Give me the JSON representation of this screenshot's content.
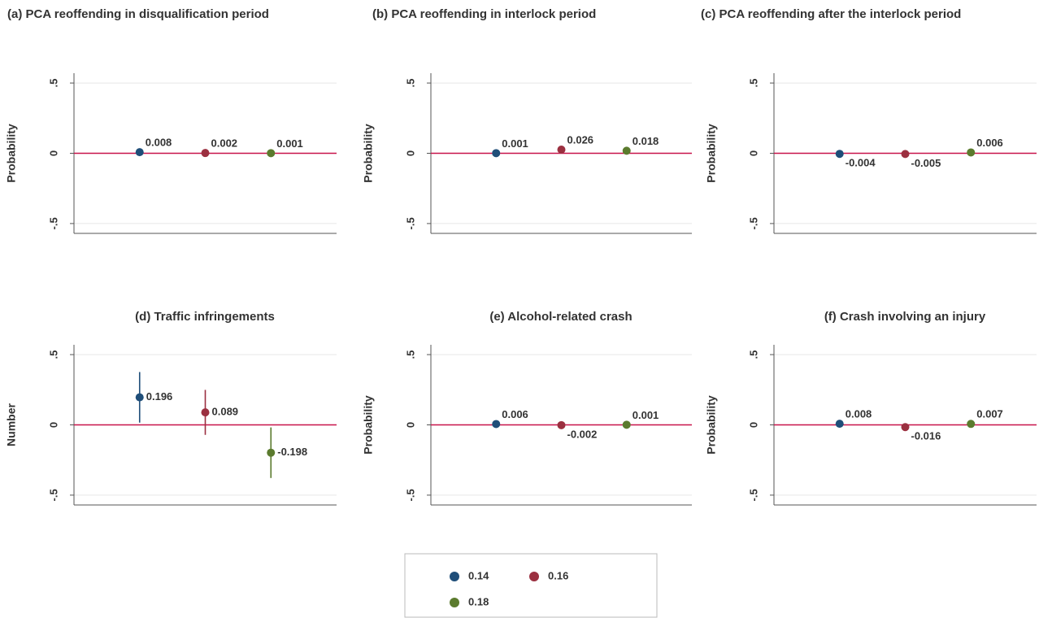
{
  "legend": [
    {
      "name": "0.14",
      "color": "#1f4e79"
    },
    {
      "name": "0.16",
      "color": "#9b3040"
    },
    {
      "name": "0.18",
      "color": "#5b7b2e"
    }
  ],
  "chart_data": [
    {
      "type": "scatter",
      "title": "(a) PCA reoffending in disqualification period",
      "y_label": "Probability",
      "ylim": [
        -0.57,
        0.57
      ],
      "yticks": [
        {
          "value": 0.5,
          "label": ".5"
        },
        0,
        {
          "value": -0.5,
          "label": "-.5"
        }
      ],
      "reference_line": {
        "value": 0,
        "color": "#c8134a"
      },
      "series": [
        {
          "values": [
            0.008
          ]
        },
        {
          "values": [
            0.002
          ]
        },
        {
          "values": [
            0.001
          ]
        }
      ]
    },
    {
      "type": "scatter",
      "title": "(b) PCA reoffending in interlock period",
      "y_label": "Probability",
      "ylim": [
        -0.57,
        0.57
      ],
      "yticks": [
        {
          "value": 0.5,
          "label": ".5"
        },
        0,
        {
          "value": -0.5,
          "label": "-.5"
        }
      ],
      "reference_line": {
        "value": 0,
        "color": "#c8134a"
      },
      "series": [
        {
          "values": [
            0.001
          ]
        },
        {
          "values": [
            0.026
          ]
        },
        {
          "values": [
            0.018
          ]
        }
      ]
    },
    {
      "type": "scatter",
      "title": "(c) PCA reoffending after the interlock period",
      "y_label": "Probability",
      "ylim": [
        -0.57,
        0.57
      ],
      "yticks": [
        {
          "value": 0.5,
          "label": ".5"
        },
        0,
        {
          "value": -0.5,
          "label": "-.5"
        }
      ],
      "reference_line": {
        "value": 0,
        "color": "#c8134a"
      },
      "series": [
        {
          "values": [
            -0.004
          ]
        },
        {
          "values": [
            -0.005
          ]
        },
        {
          "values": [
            0.006
          ]
        }
      ]
    },
    {
      "type": "scatter",
      "title": "(d) Traffic infringements",
      "y_label": "Number",
      "ylim": [
        -0.57,
        0.57
      ],
      "yticks": [
        {
          "value": 0.5,
          "label": ".5"
        },
        0,
        {
          "value": -0.5,
          "label": "-.5"
        }
      ],
      "reference_line": {
        "value": 0,
        "color": "#c8134a"
      },
      "series": [
        {
          "values": [
            0.196
          ],
          "errors": [
            0.18
          ]
        },
        {
          "values": [
            0.089
          ],
          "errors": [
            0.16
          ]
        },
        {
          "values": [
            -0.198
          ],
          "errors": [
            0.18
          ]
        }
      ]
    },
    {
      "type": "scatter",
      "title": "(e) Alcohol-related crash",
      "y_label": "Probability",
      "ylim": [
        -0.57,
        0.57
      ],
      "yticks": [
        {
          "value": 0.5,
          "label": ".5"
        },
        0,
        {
          "value": -0.5,
          "label": "-.5"
        }
      ],
      "reference_line": {
        "value": 0,
        "color": "#c8134a"
      },
      "series": [
        {
          "values": [
            0.006
          ]
        },
        {
          "values": [
            -0.002
          ]
        },
        {
          "values": [
            0.001
          ]
        }
      ]
    },
    {
      "type": "scatter",
      "title": "(f) Crash involving an injury",
      "y_label": "Probability",
      "ylim": [
        -0.57,
        0.57
      ],
      "yticks": [
        {
          "value": 0.5,
          "label": ".5"
        },
        0,
        {
          "value": -0.5,
          "label": "-.5"
        }
      ],
      "reference_line": {
        "value": 0,
        "color": "#c8134a"
      },
      "series": [
        {
          "values": [
            0.008
          ]
        },
        {
          "values": [
            -0.016
          ]
        },
        {
          "values": [
            0.007
          ]
        }
      ]
    }
  ]
}
